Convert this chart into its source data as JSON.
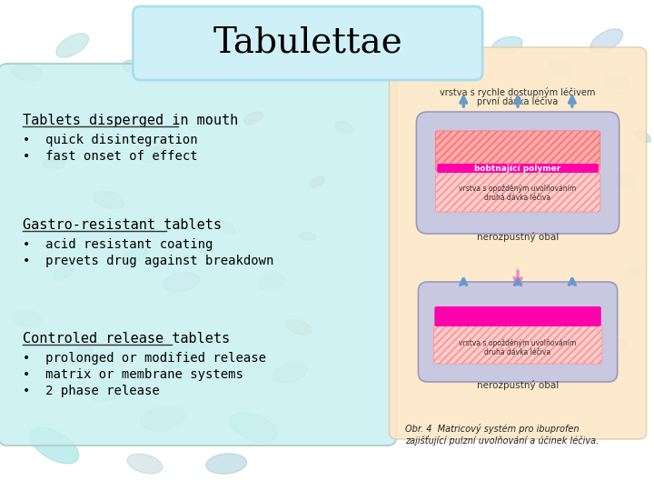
{
  "title": "Tabulettae",
  "title_box_color": "#d0f0f8",
  "title_fontsize": 28,
  "bg_color": "#ffffff",
  "left_panel_bg": "#c8f0f0",
  "right_panel_bg": "#fde8c8",
  "sections": [
    {
      "heading": "Tablets disperged in mouth",
      "bullets": [
        "quick disintegration",
        "fast onset of effect"
      ]
    },
    {
      "heading": "Gastro-resistant tablets",
      "bullets": [
        "acid resistant coating",
        "prevets drug against breakdown"
      ]
    },
    {
      "heading": "Controled release tablets",
      "bullets": [
        "prolonged or modified release",
        "matrix or membrane systems",
        "2 phase release"
      ]
    }
  ],
  "text_color": "#000000",
  "heading_color": "#000000",
  "pill_shapes": [
    [
      60,
      490,
      60,
      30,
      -30,
      "#88dddd",
      0.5
    ],
    [
      120,
      430,
      40,
      20,
      20,
      "#aadddd",
      0.4
    ],
    [
      180,
      460,
      50,
      25,
      10,
      "#ccddcc",
      0.4
    ],
    [
      30,
      350,
      35,
      18,
      -10,
      "#bbdddd",
      0.4
    ],
    [
      200,
      390,
      45,
      22,
      30,
      "#aaccdd",
      0.4
    ],
    [
      280,
      470,
      55,
      28,
      -20,
      "#99cccc",
      0.4
    ],
    [
      320,
      410,
      40,
      20,
      15,
      "#bbccdd",
      0.4
    ],
    [
      90,
      390,
      30,
      15,
      40,
      "#99bbcc",
      0.4
    ],
    [
      160,
      510,
      40,
      20,
      -15,
      "#aacccc",
      0.4
    ],
    [
      250,
      510,
      45,
      22,
      5,
      "#88bbcc",
      0.4
    ],
    [
      30,
      80,
      35,
      18,
      -10,
      "#bbdddd",
      0.5
    ],
    [
      80,
      50,
      40,
      20,
      30,
      "#aadddd",
      0.5
    ],
    [
      150,
      75,
      30,
      15,
      -20,
      "#88cccc",
      0.4
    ],
    [
      200,
      45,
      45,
      22,
      10,
      "#aacccc",
      0.4
    ],
    [
      360,
      70,
      35,
      18,
      -30,
      "#bbccdd",
      0.4
    ],
    [
      420,
      40,
      30,
      15,
      20,
      "#99ccdd",
      0.4
    ],
    [
      490,
      80,
      40,
      20,
      -10,
      "#aaddcc",
      0.4
    ],
    [
      560,
      50,
      35,
      18,
      15,
      "#88ccdd",
      0.4
    ],
    [
      620,
      75,
      30,
      15,
      -25,
      "#bbddcc",
      0.4
    ],
    [
      670,
      45,
      40,
      20,
      30,
      "#99bbdd",
      0.4
    ],
    [
      680,
      90,
      30,
      15,
      -10,
      "#aaccdd",
      0.4
    ],
    [
      60,
      180,
      25,
      12,
      0,
      "#aadddd",
      0.5
    ],
    [
      350,
      200,
      18,
      10,
      30,
      "#cc99cc",
      0.5
    ],
    [
      380,
      140,
      20,
      12,
      -20,
      "#ddaaaa",
      0.4
    ],
    [
      300,
      310,
      30,
      15,
      15,
      "#aaddcc",
      0.4
    ],
    [
      250,
      250,
      22,
      11,
      -30,
      "#bbccdd",
      0.4
    ],
    [
      150,
      280,
      28,
      14,
      20,
      "#88ddcc",
      0.4
    ],
    [
      120,
      220,
      35,
      18,
      -15,
      "#aacc99",
      0.4
    ],
    [
      200,
      310,
      40,
      20,
      10,
      "#ccaadd",
      0.4
    ],
    [
      70,
      300,
      25,
      12,
      30,
      "#99ccdd",
      0.4
    ],
    [
      330,
      360,
      30,
      15,
      -20,
      "#ddbb99",
      0.5
    ],
    [
      280,
      130,
      22,
      11,
      25,
      "#cc88aa",
      0.5
    ],
    [
      340,
      260,
      18,
      9,
      -10,
      "#aabbcc",
      0.4
    ],
    [
      170,
      170,
      30,
      15,
      15,
      "#88ccdd",
      0.4
    ],
    [
      690,
      200,
      30,
      15,
      -20,
      "#aadddd",
      0.4
    ],
    [
      700,
      300,
      25,
      12,
      30,
      "#bbcccc",
      0.4
    ],
    [
      710,
      150,
      20,
      10,
      -30,
      "#99bbcc",
      0.4
    ],
    [
      680,
      380,
      28,
      14,
      15,
      "#aacccc",
      0.4
    ]
  ],
  "tablet_diagram": {
    "top_label1": "vrstva s rychle dostupným léčivem",
    "top_label2": "první dávka léčiva",
    "polymer_label": "bobtnající polymer",
    "delayed_label1": "vrstva s opožděným uvolňováním",
    "delayed_label2": "druhá dávka léčiva",
    "coat_label": "nerozpustný obal",
    "coat_label2": "nerozpustný obal",
    "caption": "Obr. 4  Matricový systém pro ibuprofen\nzajišťující pulzní uvolňování a účinek léčiva.",
    "polymer_color": "#ff00aa",
    "coat_color": "#c8c8e0",
    "hatch_face_color": "#ffaaaa",
    "hatch_face_color2": "#ffcccc",
    "hatch_edge_color": "#ff6666",
    "hatch_edge_color2": "#ff8888",
    "arrow_color_up": "#6699cc",
    "arrow_color_down": "#ff88bb"
  }
}
